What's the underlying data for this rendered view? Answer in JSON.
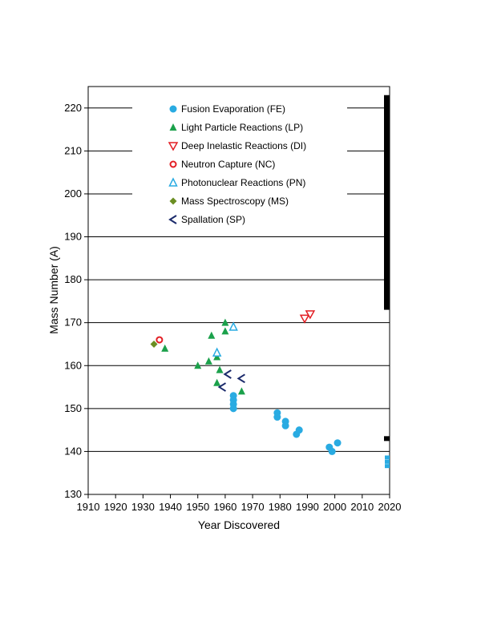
{
  "chart_data": {
    "type": "scatter",
    "xlabel": "Year Discovered",
    "ylabel": "Mass Number (A)",
    "xlim": [
      1910,
      2020
    ],
    "ylim": [
      130,
      225
    ],
    "xticks": [
      1910,
      1920,
      1930,
      1940,
      1950,
      1960,
      1970,
      1980,
      1990,
      2000,
      2010,
      2020
    ],
    "yticks": [
      130,
      140,
      150,
      160,
      170,
      180,
      190,
      200,
      210,
      220
    ],
    "grid": "horizontal",
    "legend_position": "top-center",
    "series": [
      {
        "name": "Fusion Evaporation (FE)",
        "marker": "circle-filled",
        "color": "#29ABE2",
        "points": [
          [
            1963,
            153
          ],
          [
            1963,
            152
          ],
          [
            1963,
            151
          ],
          [
            1963,
            150
          ],
          [
            1979,
            149
          ],
          [
            1979,
            148
          ],
          [
            1982,
            147
          ],
          [
            1982,
            146
          ],
          [
            1986,
            144
          ],
          [
            1987,
            145
          ],
          [
            1998,
            141
          ],
          [
            1999,
            140
          ],
          [
            2001,
            142
          ]
        ]
      },
      {
        "name": "Light Particle Reactions (LP)",
        "marker": "triangle-up-filled",
        "color": "#1BA14B",
        "points": [
          [
            1938,
            164
          ],
          [
            1950,
            160
          ],
          [
            1954,
            161
          ],
          [
            1955,
            167
          ],
          [
            1957,
            156
          ],
          [
            1957,
            162
          ],
          [
            1958,
            159
          ],
          [
            1960,
            170
          ],
          [
            1960,
            168
          ],
          [
            1966,
            154
          ]
        ]
      },
      {
        "name": "Deep Inelastic Reactions (DI)",
        "marker": "triangle-down-open",
        "color": "#E31E24",
        "points": [
          [
            1989,
            171
          ],
          [
            1991,
            172
          ]
        ]
      },
      {
        "name": "Neutron Capture (NC)",
        "marker": "circle-open",
        "color": "#E31E24",
        "points": [
          [
            1936,
            166
          ]
        ]
      },
      {
        "name": "Photonuclear Reactions (PN)",
        "marker": "triangle-up-open",
        "color": "#29ABE2",
        "points": [
          [
            1957,
            163
          ],
          [
            1963,
            169
          ]
        ]
      },
      {
        "name": "Mass Spectroscopy (MS)",
        "marker": "diamond-filled",
        "color": "#6B8E23",
        "points": [
          [
            1934,
            165
          ]
        ]
      },
      {
        "name": "Spallation (SP)",
        "marker": "triangle-left-open",
        "color": "#1B2A6B",
        "points": [
          [
            1959,
            155
          ],
          [
            1961,
            158
          ],
          [
            1966,
            157
          ]
        ]
      }
    ],
    "right_edge_markers": [
      {
        "kind": "bar",
        "color": "#000000",
        "y_from": 173,
        "y_to": 223
      },
      {
        "kind": "tick",
        "color": "#000000",
        "y": 143
      },
      {
        "kind": "squares",
        "color": "#29ABE2",
        "ys": [
          136.5,
          137.5,
          138.5
        ]
      }
    ]
  }
}
